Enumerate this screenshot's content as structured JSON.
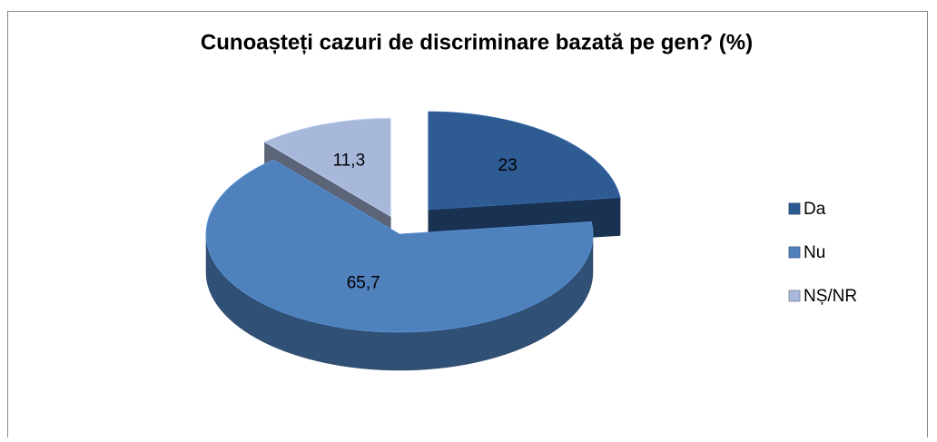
{
  "chart_data": {
    "type": "pie3d",
    "title": "Cunoașteți cazuri de discriminare bazată pe gen? (%)",
    "categories": [
      "Da",
      "Nu",
      "NȘ/NR"
    ],
    "values": [
      23,
      65.7,
      11.3
    ],
    "value_labels": [
      "23",
      "65,7",
      "11,3"
    ],
    "colors": [
      "#2f5b93",
      "#4f81bd",
      "#a8b8da"
    ],
    "legend": "right"
  }
}
